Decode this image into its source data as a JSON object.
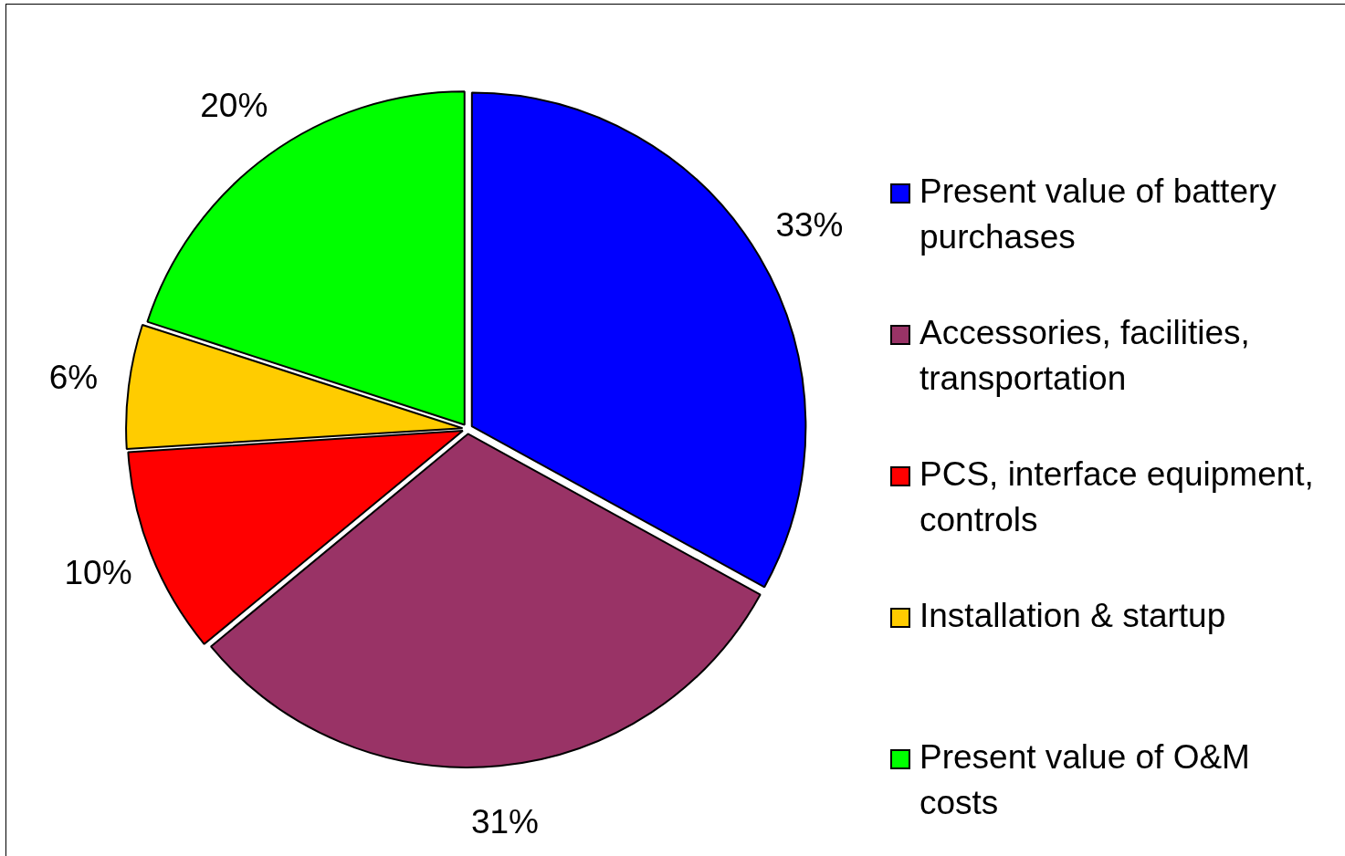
{
  "chart_data": {
    "type": "pie",
    "categories": [
      "Present value of battery purchases",
      "Accessories, facilities, transportation",
      "PCS, interface equipment, controls",
      "Installation & startup",
      "Present value of O&M costs"
    ],
    "values": [
      33,
      31,
      10,
      6,
      20
    ],
    "colors": [
      "#0000ff",
      "#993366",
      "#ff0000",
      "#ffcc00",
      "#00ff00"
    ],
    "value_labels": [
      "33%",
      "31%",
      "10%",
      "6%",
      "20%"
    ],
    "legend": "right"
  }
}
